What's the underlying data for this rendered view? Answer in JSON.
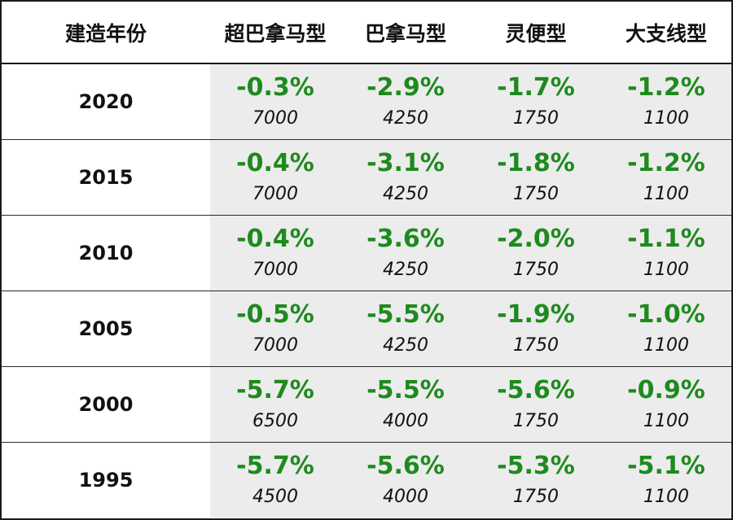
{
  "chart_data": {
    "type": "table",
    "columns": [
      "建造年份",
      "超巴拿马型",
      "巴拿马型",
      "灵便型",
      "大支线型"
    ],
    "rows": [
      {
        "year": "2020",
        "cells": [
          {
            "pct": "-0.3%",
            "size": "7000"
          },
          {
            "pct": "-2.9%",
            "size": "4250"
          },
          {
            "pct": "-1.7%",
            "size": "1750"
          },
          {
            "pct": "-1.2%",
            "size": "1100"
          }
        ]
      },
      {
        "year": "2015",
        "cells": [
          {
            "pct": "-0.4%",
            "size": "7000"
          },
          {
            "pct": "-3.1%",
            "size": "4250"
          },
          {
            "pct": "-1.8%",
            "size": "1750"
          },
          {
            "pct": "-1.2%",
            "size": "1100"
          }
        ]
      },
      {
        "year": "2010",
        "cells": [
          {
            "pct": "-0.4%",
            "size": "7000"
          },
          {
            "pct": "-3.6%",
            "size": "4250"
          },
          {
            "pct": "-2.0%",
            "size": "1750"
          },
          {
            "pct": "-1.1%",
            "size": "1100"
          }
        ]
      },
      {
        "year": "2005",
        "cells": [
          {
            "pct": "-0.5%",
            "size": "7000"
          },
          {
            "pct": "-5.5%",
            "size": "4250"
          },
          {
            "pct": "-1.9%",
            "size": "1750"
          },
          {
            "pct": "-1.0%",
            "size": "1100"
          }
        ]
      },
      {
        "year": "2000",
        "cells": [
          {
            "pct": "-5.7%",
            "size": "6500"
          },
          {
            "pct": "-5.5%",
            "size": "4000"
          },
          {
            "pct": "-5.6%",
            "size": "1750"
          },
          {
            "pct": "-0.9%",
            "size": "1100"
          }
        ]
      },
      {
        "year": "1995",
        "cells": [
          {
            "pct": "-5.7%",
            "size": "4500"
          },
          {
            "pct": "-5.6%",
            "size": "4000"
          },
          {
            "pct": "-5.3%",
            "size": "1750"
          },
          {
            "pct": "-5.1%",
            "size": "1100"
          }
        ]
      }
    ],
    "colors": {
      "value_text": "#1e8a1e",
      "cell_background": "#ececec",
      "border": "#1a1a1a"
    }
  }
}
